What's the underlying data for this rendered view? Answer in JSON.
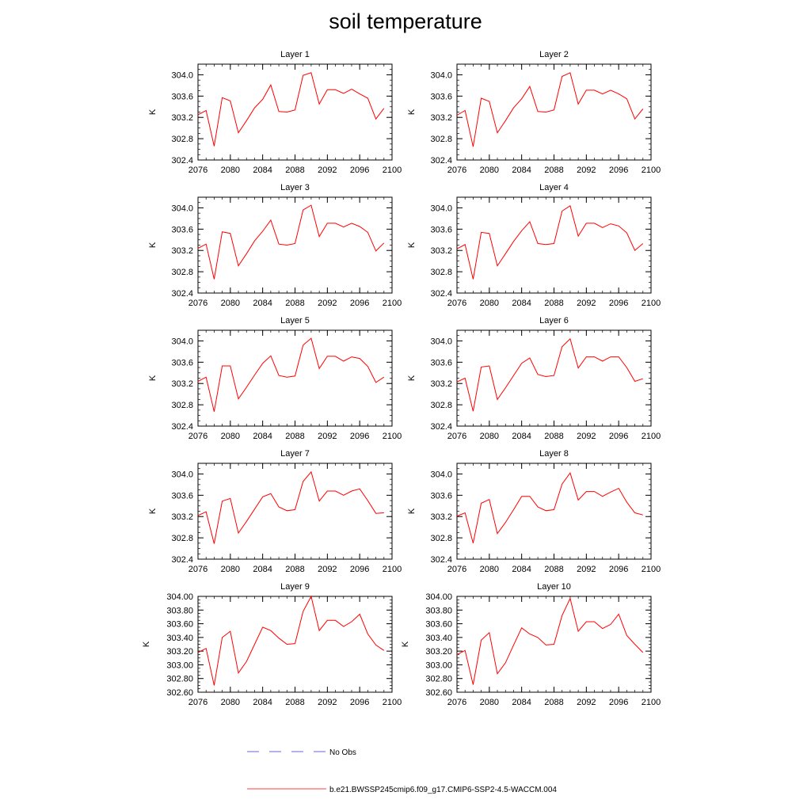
{
  "title": "soil temperature",
  "colors": {
    "model": "#ff0000",
    "obs": "#3333cc"
  },
  "legend": {
    "obs_label": "No Obs",
    "model_label": "b.e21.BWSSP245cmip6.f09_g17.CMIP6-SSP2-4.5-WACCM.004"
  },
  "chart_data": [
    {
      "type": "line",
      "title": "Layer 1",
      "ylabel": "K",
      "xlim": [
        2076,
        2100
      ],
      "ylim": [
        302.4,
        304.2
      ],
      "xticks": [
        "2076",
        "2080",
        "2084",
        "2088",
        "2092",
        "2096",
        "2100"
      ],
      "yticks": [
        "302.4",
        "302.8",
        "303.2",
        "303.6",
        "304.0"
      ],
      "x": [
        2076,
        2077,
        2078,
        2079,
        2080,
        2081,
        2082,
        2083,
        2084,
        2085,
        2086,
        2087,
        2088,
        2089,
        2090,
        2091,
        2092,
        2093,
        2094,
        2095,
        2096,
        2097,
        2098,
        2099
      ],
      "series": [
        {
          "name": "b.e21.BWSSP245cmip6.f09_g17.CMIP6-SSP2-4.5-WACCM.004",
          "values": [
            303.25,
            303.33,
            302.66,
            303.57,
            303.51,
            302.91,
            303.14,
            303.38,
            303.54,
            303.81,
            303.31,
            303.3,
            303.34,
            303.99,
            304.04,
            303.45,
            303.72,
            303.72,
            303.65,
            303.73,
            303.64,
            303.56,
            303.17,
            303.37
          ]
        }
      ]
    },
    {
      "type": "line",
      "title": "Layer 2",
      "ylabel": "K",
      "xlim": [
        2076,
        2100
      ],
      "ylim": [
        302.4,
        304.2
      ],
      "xticks": [
        "2076",
        "2080",
        "2084",
        "2088",
        "2092",
        "2096",
        "2100"
      ],
      "yticks": [
        "302.4",
        "302.8",
        "303.2",
        "303.6",
        "304.0"
      ],
      "x": [
        2076,
        2077,
        2078,
        2079,
        2080,
        2081,
        2082,
        2083,
        2084,
        2085,
        2086,
        2087,
        2088,
        2089,
        2090,
        2091,
        2092,
        2093,
        2094,
        2095,
        2096,
        2097,
        2098,
        2099
      ],
      "series": [
        {
          "name": "b.e21.BWSSP245cmip6.f09_g17.CMIP6-SSP2-4.5-WACCM.004",
          "values": [
            303.24,
            303.33,
            302.65,
            303.56,
            303.5,
            302.91,
            303.14,
            303.38,
            303.55,
            303.78,
            303.31,
            303.3,
            303.34,
            303.97,
            304.04,
            303.45,
            303.71,
            303.71,
            303.64,
            303.71,
            303.64,
            303.55,
            303.17,
            303.36
          ]
        }
      ]
    },
    {
      "type": "line",
      "title": "Layer 3",
      "ylabel": "K",
      "xlim": [
        2076,
        2100
      ],
      "ylim": [
        302.4,
        304.2
      ],
      "xticks": [
        "2076",
        "2080",
        "2084",
        "2088",
        "2092",
        "2096",
        "2100"
      ],
      "yticks": [
        "302.4",
        "302.8",
        "303.2",
        "303.6",
        "304.0"
      ],
      "x": [
        2076,
        2077,
        2078,
        2079,
        2080,
        2081,
        2082,
        2083,
        2084,
        2085,
        2086,
        2087,
        2088,
        2089,
        2090,
        2091,
        2092,
        2093,
        2094,
        2095,
        2096,
        2097,
        2098,
        2099
      ],
      "series": [
        {
          "name": "b.e21.BWSSP245cmip6.f09_g17.CMIP6-SSP2-4.5-WACCM.004",
          "values": [
            303.24,
            303.32,
            302.66,
            303.55,
            303.52,
            302.91,
            303.14,
            303.38,
            303.56,
            303.77,
            303.32,
            303.3,
            303.33,
            303.96,
            304.05,
            303.46,
            303.71,
            303.71,
            303.64,
            303.71,
            303.65,
            303.54,
            303.19,
            303.34
          ]
        }
      ]
    },
    {
      "type": "line",
      "title": "Layer 4",
      "ylabel": "K",
      "xlim": [
        2076,
        2100
      ],
      "ylim": [
        302.4,
        304.2
      ],
      "xticks": [
        "2076",
        "2080",
        "2084",
        "2088",
        "2092",
        "2096",
        "2100"
      ],
      "yticks": [
        "302.4",
        "302.8",
        "303.2",
        "303.6",
        "304.0"
      ],
      "x": [
        2076,
        2077,
        2078,
        2079,
        2080,
        2081,
        2082,
        2083,
        2084,
        2085,
        2086,
        2087,
        2088,
        2089,
        2090,
        2091,
        2092,
        2093,
        2094,
        2095,
        2096,
        2097,
        2098,
        2099
      ],
      "series": [
        {
          "name": "b.e21.BWSSP245cmip6.f09_g17.CMIP6-SSP2-4.5-WACCM.004",
          "values": [
            303.23,
            303.31,
            302.66,
            303.54,
            303.52,
            302.91,
            303.14,
            303.37,
            303.57,
            303.74,
            303.33,
            303.31,
            303.33,
            303.94,
            304.04,
            303.47,
            303.71,
            303.71,
            303.63,
            303.7,
            303.66,
            303.53,
            303.2,
            303.33
          ]
        }
      ]
    },
    {
      "type": "line",
      "title": "Layer 5",
      "ylabel": "K",
      "xlim": [
        2076,
        2100
      ],
      "ylim": [
        302.4,
        304.2
      ],
      "xticks": [
        "2076",
        "2080",
        "2084",
        "2088",
        "2092",
        "2096",
        "2100"
      ],
      "yticks": [
        "302.4",
        "302.8",
        "303.2",
        "303.6",
        "304.0"
      ],
      "x": [
        2076,
        2077,
        2078,
        2079,
        2080,
        2081,
        2082,
        2083,
        2084,
        2085,
        2086,
        2087,
        2088,
        2089,
        2090,
        2091,
        2092,
        2093,
        2094,
        2095,
        2096,
        2097,
        2098,
        2099
      ],
      "series": [
        {
          "name": "b.e21.BWSSP245cmip6.f09_g17.CMIP6-SSP2-4.5-WACCM.004",
          "values": [
            303.24,
            303.32,
            302.67,
            303.53,
            303.53,
            302.91,
            303.13,
            303.36,
            303.58,
            303.72,
            303.35,
            303.32,
            303.34,
            303.92,
            304.05,
            303.48,
            303.71,
            303.71,
            303.62,
            303.7,
            303.67,
            303.52,
            303.22,
            303.32
          ]
        }
      ]
    },
    {
      "type": "line",
      "title": "Layer 6",
      "ylabel": "K",
      "xlim": [
        2076,
        2100
      ],
      "ylim": [
        302.4,
        304.2
      ],
      "xticks": [
        "2076",
        "2080",
        "2084",
        "2088",
        "2092",
        "2096",
        "2100"
      ],
      "yticks": [
        "302.4",
        "302.8",
        "303.2",
        "303.6",
        "304.0"
      ],
      "x": [
        2076,
        2077,
        2078,
        2079,
        2080,
        2081,
        2082,
        2083,
        2084,
        2085,
        2086,
        2087,
        2088,
        2089,
        2090,
        2091,
        2092,
        2093,
        2094,
        2095,
        2096,
        2097,
        2098,
        2099
      ],
      "series": [
        {
          "name": "b.e21.BWSSP245cmip6.f09_g17.CMIP6-SSP2-4.5-WACCM.004",
          "values": [
            303.23,
            303.3,
            302.68,
            303.51,
            303.53,
            302.9,
            303.12,
            303.35,
            303.58,
            303.68,
            303.37,
            303.33,
            303.35,
            303.89,
            304.04,
            303.49,
            303.7,
            303.7,
            303.62,
            303.7,
            303.7,
            303.5,
            303.24,
            303.29
          ]
        }
      ]
    },
    {
      "type": "line",
      "title": "Layer 7",
      "ylabel": "K",
      "xlim": [
        2076,
        2100
      ],
      "ylim": [
        302.4,
        304.2
      ],
      "xticks": [
        "2076",
        "2080",
        "2084",
        "2088",
        "2092",
        "2096",
        "2100"
      ],
      "yticks": [
        "302.4",
        "302.8",
        "303.2",
        "303.6",
        "304.0"
      ],
      "x": [
        2076,
        2077,
        2078,
        2079,
        2080,
        2081,
        2082,
        2083,
        2084,
        2085,
        2086,
        2087,
        2088,
        2089,
        2090,
        2091,
        2092,
        2093,
        2094,
        2095,
        2096,
        2097,
        2098,
        2099
      ],
      "series": [
        {
          "name": "b.e21.BWSSP245cmip6.f09_g17.CMIP6-SSP2-4.5-WACCM.004",
          "values": [
            303.22,
            303.29,
            302.69,
            303.49,
            303.54,
            302.89,
            303.11,
            303.34,
            303.57,
            303.63,
            303.38,
            303.31,
            303.33,
            303.86,
            304.04,
            303.49,
            303.68,
            303.68,
            303.6,
            303.68,
            303.72,
            303.5,
            303.26,
            303.27
          ]
        }
      ]
    },
    {
      "type": "line",
      "title": "Layer 8",
      "ylabel": "K",
      "xlim": [
        2076,
        2100
      ],
      "ylim": [
        302.4,
        304.2
      ],
      "xticks": [
        "2076",
        "2080",
        "2084",
        "2088",
        "2092",
        "2096",
        "2100"
      ],
      "yticks": [
        "302.4",
        "302.8",
        "303.2",
        "303.6",
        "304.0"
      ],
      "x": [
        2076,
        2077,
        2078,
        2079,
        2080,
        2081,
        2082,
        2083,
        2084,
        2085,
        2086,
        2087,
        2088,
        2089,
        2090,
        2091,
        2092,
        2093,
        2094,
        2095,
        2096,
        2097,
        2098,
        2099
      ],
      "series": [
        {
          "name": "b.e21.BWSSP245cmip6.f09_g17.CMIP6-SSP2-4.5-WACCM.004",
          "values": [
            303.21,
            303.27,
            302.7,
            303.45,
            303.52,
            302.88,
            303.09,
            303.33,
            303.58,
            303.58,
            303.38,
            303.31,
            303.33,
            303.81,
            304.02,
            303.51,
            303.67,
            303.67,
            303.58,
            303.66,
            303.73,
            303.47,
            303.27,
            303.23
          ]
        }
      ]
    },
    {
      "type": "line",
      "title": "Layer 9",
      "ylabel": "K",
      "xlim": [
        2076,
        2100
      ],
      "ylim": [
        302.6,
        304.0
      ],
      "xticks": [
        "2076",
        "2080",
        "2084",
        "2088",
        "2092",
        "2096",
        "2100"
      ],
      "yticks": [
        "302.60",
        "302.80",
        "303.00",
        "303.20",
        "303.40",
        "303.60",
        "303.80",
        "304.00"
      ],
      "x": [
        2076,
        2077,
        2078,
        2079,
        2080,
        2081,
        2082,
        2083,
        2084,
        2085,
        2086,
        2087,
        2088,
        2089,
        2090,
        2091,
        2092,
        2093,
        2094,
        2095,
        2096,
        2097,
        2098,
        2099
      ],
      "series": [
        {
          "name": "b.e21.BWSSP245cmip6.f09_g17.CMIP6-SSP2-4.5-WACCM.004",
          "values": [
            303.18,
            303.24,
            302.7,
            303.4,
            303.49,
            302.88,
            303.05,
            303.3,
            303.55,
            303.5,
            303.39,
            303.3,
            303.31,
            303.78,
            304.0,
            303.5,
            303.65,
            303.65,
            303.56,
            303.63,
            303.74,
            303.45,
            303.29,
            303.21
          ]
        }
      ]
    },
    {
      "type": "line",
      "title": "Layer 10",
      "ylabel": "K",
      "xlim": [
        2076,
        2100
      ],
      "ylim": [
        302.6,
        304.0
      ],
      "xticks": [
        "2076",
        "2080",
        "2084",
        "2088",
        "2092",
        "2096",
        "2100"
      ],
      "yticks": [
        "302.60",
        "302.80",
        "303.00",
        "303.20",
        "303.40",
        "303.60",
        "303.80",
        "304.00"
      ],
      "x": [
        2076,
        2077,
        2078,
        2079,
        2080,
        2081,
        2082,
        2083,
        2084,
        2085,
        2086,
        2087,
        2088,
        2089,
        2090,
        2091,
        2092,
        2093,
        2094,
        2095,
        2096,
        2097,
        2098,
        2099
      ],
      "series": [
        {
          "name": "b.e21.BWSSP245cmip6.f09_g17.CMIP6-SSP2-4.5-WACCM.004",
          "values": [
            303.15,
            303.21,
            302.71,
            303.36,
            303.47,
            302.87,
            303.03,
            303.29,
            303.54,
            303.45,
            303.4,
            303.29,
            303.3,
            303.72,
            303.97,
            303.49,
            303.63,
            303.63,
            303.53,
            303.59,
            303.74,
            303.43,
            303.3,
            303.18
          ]
        }
      ]
    }
  ]
}
